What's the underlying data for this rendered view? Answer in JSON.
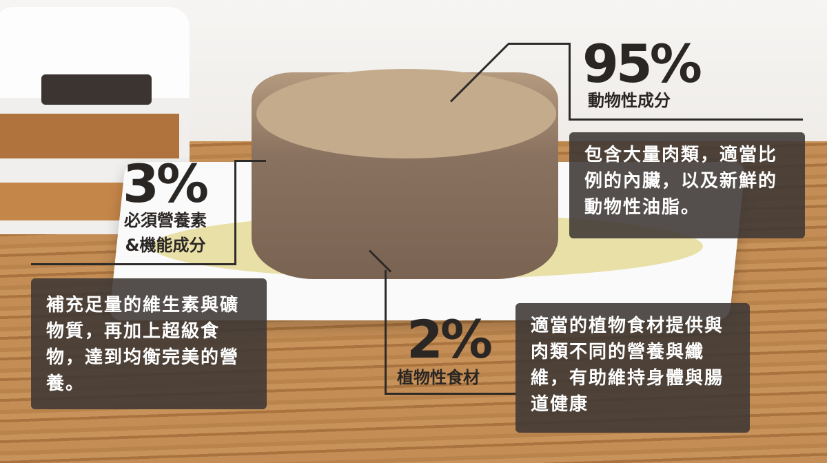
{
  "annotations": [
    {
      "percent": "95%",
      "label": "動物性成分",
      "description": "包含大量肉類，適當比例的內臟，以及新鮮的動物性油脂。"
    },
    {
      "percent": "3%",
      "label_lines": [
        "必須營養素",
        "&機能成分"
      ],
      "description": "補充足量的維生素與礦物質，再加上超級食物，達到均衡完美的營養。"
    },
    {
      "percent": "2%",
      "label": "植物性食材",
      "description": "適當的植物食材提供與肉類不同的營養與纖維，有助維持身體與腸道健康"
    }
  ],
  "colors": {
    "text_dark": "#2a2624",
    "box_bg": "#3c3734"
  }
}
